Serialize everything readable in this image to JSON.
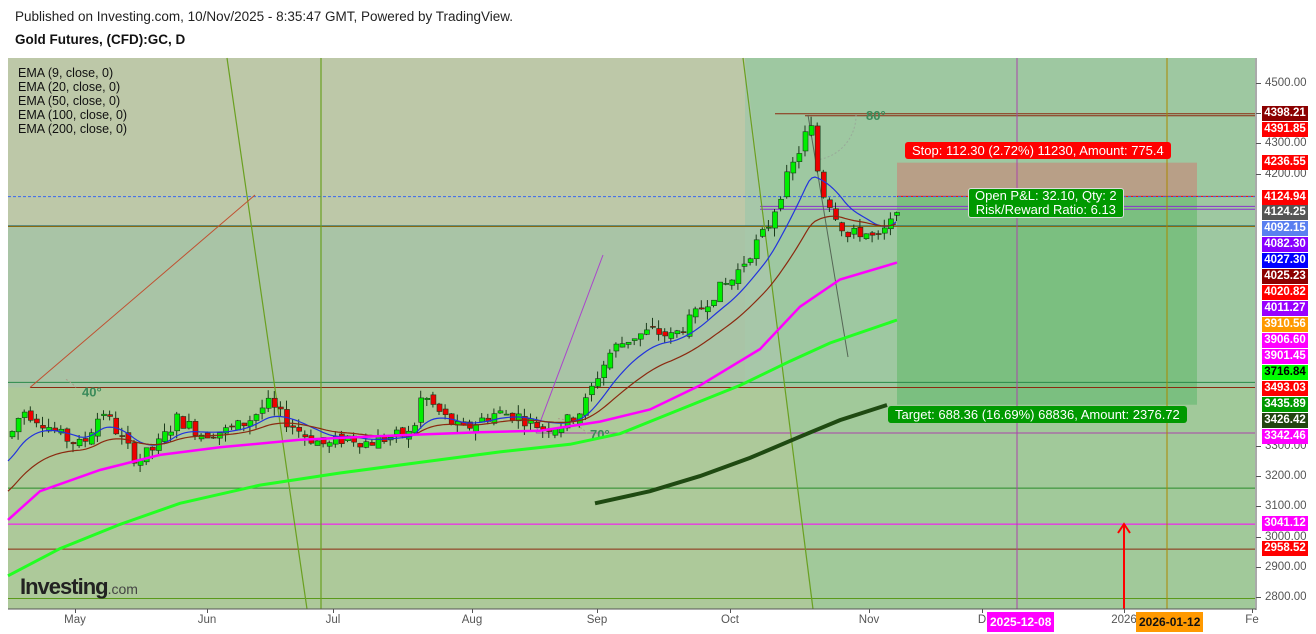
{
  "header": {
    "published": "Published on Investing.com, 10/Nov/2025 - 8:35:47 GMT, Powered by TradingView.",
    "symbol": "Gold Futures, (CFD):GC, D"
  },
  "legend": [
    "EMA (9, close, 0)",
    "EMA (20, close, 0)",
    "EMA (50, close, 0)",
    "EMA (100, close, 0)",
    "EMA (200, close, 0)"
  ],
  "logo": {
    "brand": "Investing",
    "suffix": ".com"
  },
  "position_tool": {
    "stop_label": "Stop: 112.30 (2.72%) 11230, Amount: 775.4",
    "pnl_label": "Open P&L: 32.10, Qty: 2",
    "rr_label": "Risk/Reward Ratio: 6.13",
    "target_label": "Target: 688.36 (16.69%) 68836, Amount: 2376.72",
    "colors": {
      "stop": "#ff0000",
      "target": "#009900"
    }
  },
  "angle_labels": [
    "40°",
    "70°",
    "80°"
  ],
  "chart_data": {
    "type": "candlestick",
    "title": "Gold Futures, (CFD):GC, D",
    "timeframe": "D",
    "xlabel": "",
    "ylabel": "",
    "x_ticks": [
      "May",
      "Jun",
      "Jul",
      "Aug",
      "Sep",
      "Oct",
      "Nov",
      "D",
      "2026",
      "Fe"
    ],
    "x_badges": [
      {
        "label": "2025-12-08",
        "color": "#ff00ff"
      },
      {
        "label": "2026-01-12",
        "color": "#ff9900"
      }
    ],
    "y_ticks": [
      4500,
      4400,
      4300,
      4200,
      3300,
      3200,
      3100,
      3000,
      2900,
      2800
    ],
    "ylim": [
      2780,
      4560
    ],
    "price_labels": [
      {
        "value": "4398.21",
        "bg": "#8b0000",
        "fg": "#ffffff"
      },
      {
        "value": "4391.85",
        "bg": "#ff0000",
        "fg": "#ffffff"
      },
      {
        "value": "4236.55",
        "bg": "#ff0000",
        "fg": "#ffffff"
      },
      {
        "value": "4124.94",
        "bg": "#ff0000",
        "fg": "#ffffff"
      },
      {
        "value": "4124.25",
        "bg": "#555555",
        "fg": "#ffffff"
      },
      {
        "value": "4092.15",
        "bg": "#5a7ff0",
        "fg": "#ffffff"
      },
      {
        "value": "4082.30",
        "bg": "#8800ff",
        "fg": "#ffffff"
      },
      {
        "value": "4027.30",
        "bg": "#0000ff",
        "fg": "#ffffff"
      },
      {
        "value": "4025.23",
        "bg": "#8b0000",
        "fg": "#ffffff"
      },
      {
        "value": "4020.82",
        "bg": "#ff0000",
        "fg": "#ffffff"
      },
      {
        "value": "4011.27",
        "bg": "#9900ff",
        "fg": "#ffffff"
      },
      {
        "value": "3910.56",
        "bg": "#ff9900",
        "fg": "#ffffff"
      },
      {
        "value": "3906.60",
        "bg": "#ff00ff",
        "fg": "#ffffff"
      },
      {
        "value": "3901.45",
        "bg": "#ff00ff",
        "fg": "#ffffff"
      },
      {
        "value": "3716.84",
        "bg": "#00ff00",
        "fg": "#000000"
      },
      {
        "value": "3493.03",
        "bg": "#ff0000",
        "fg": "#ffffff"
      },
      {
        "value": "3435.89",
        "bg": "#009900",
        "fg": "#ffffff"
      },
      {
        "value": "3426.42",
        "bg": "#224411",
        "fg": "#ffffff"
      },
      {
        "value": "3342.46",
        "bg": "#ff00ff",
        "fg": "#ffffff"
      },
      {
        "value": "3041.12",
        "bg": "#ff00ff",
        "fg": "#ffffff"
      },
      {
        "value": "2958.52",
        "bg": "#ff0000",
        "fg": "#ffffff"
      }
    ],
    "series": [
      {
        "name": "EMA 9",
        "color": "#2233dd"
      },
      {
        "name": "EMA 20",
        "color": "#8b2a10"
      },
      {
        "name": "EMA 50",
        "color": "#ff00ff"
      },
      {
        "name": "EMA 100",
        "color": "#22ff22"
      },
      {
        "name": "EMA 200",
        "color": "#1f4a12"
      }
    ],
    "candles_approx": {
      "start": "2025-04-21",
      "end": "2025-11-10",
      "first_close": 3330,
      "high": 4398.21,
      "last_close": 4124.25
    },
    "ema_values_last": {
      "EMA 9": 4092.15,
      "EMA 20": 4025.23,
      "EMA 50": 3910.56,
      "EMA 100": 3716.84,
      "EMA 200": 3426.42
    },
    "grid": false,
    "legend_position": "top-left"
  }
}
